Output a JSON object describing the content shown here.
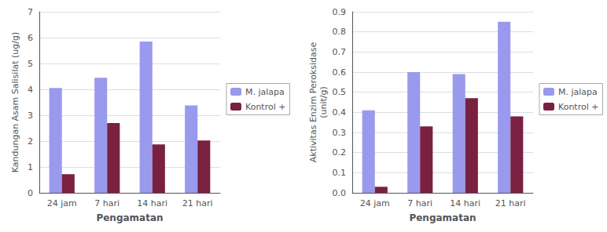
{
  "chart_data": [
    {
      "type": "bar",
      "categories": [
        "24 jam",
        "7 hari",
        "14 hari",
        "21 hari"
      ],
      "series": [
        {
          "name": "M. jalapa",
          "color": "#9999ee",
          "values": [
            4.05,
            4.45,
            5.85,
            3.38
          ]
        },
        {
          "name": "Kontrol +",
          "color": "#7a2040",
          "values": [
            0.72,
            2.7,
            1.87,
            2.02
          ]
        }
      ],
      "xlabel": "Pengamatan",
      "ylabel": "Kandungan Asam Salisilat (ug/g)",
      "ylim": [
        0,
        7
      ],
      "yticks": [
        0,
        1,
        2,
        3,
        4,
        5,
        6,
        7
      ],
      "grid": true,
      "legend": "center right"
    },
    {
      "type": "bar",
      "categories": [
        "24 jam",
        "7 hari",
        "14 hari",
        "21 hari"
      ],
      "series": [
        {
          "name": "M. jalapa",
          "color": "#9999ee",
          "values": [
            0.41,
            0.6,
            0.59,
            0.85
          ]
        },
        {
          "name": "Kontrol +",
          "color": "#7a2040",
          "values": [
            0.03,
            0.33,
            0.47,
            0.38
          ]
        }
      ],
      "xlabel": "Pengamatan",
      "ylabel": "Aktivitas Enzim Peroksidase\n(unit/g)",
      "ylim": [
        0,
        0.9
      ],
      "yticks": [
        {
          "value": 0,
          "label": "0.0"
        },
        0.1,
        0.2,
        0.3,
        0.4,
        0.5,
        0.6,
        0.7,
        0.8,
        0.9
      ],
      "grid": true,
      "legend": "center right"
    }
  ]
}
